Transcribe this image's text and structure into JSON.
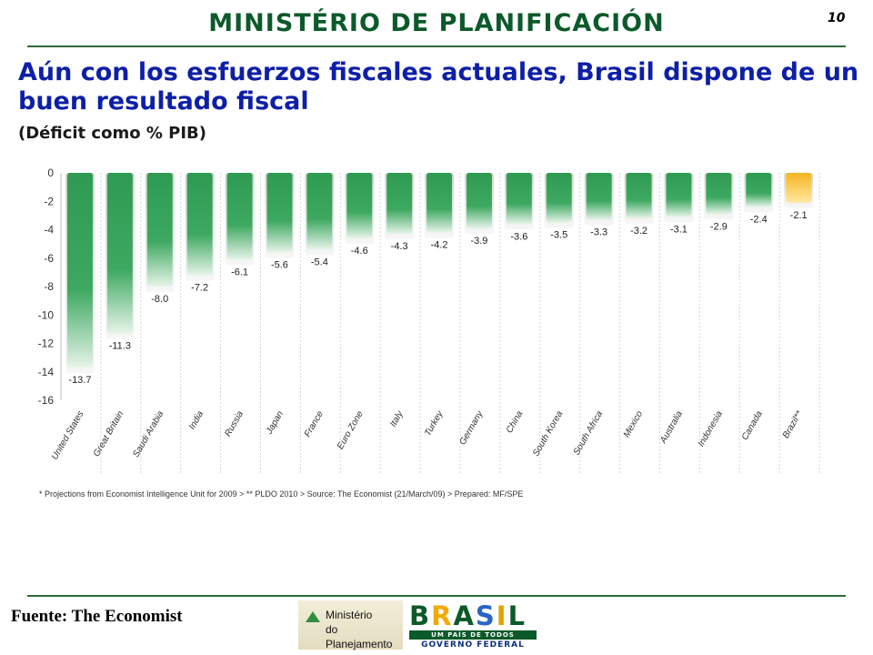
{
  "header": {
    "title": "MINISTÉRIO DE PLANIFICACIÓN",
    "page_number": "10"
  },
  "headline": "Aún con los esfuerzos fiscales actuales, Brasil dispone de un buen resultado fiscal",
  "subtitle": "(Déficit como % PIB)",
  "chart_data": {
    "type": "bar",
    "categories": [
      "United States",
      "Great Britain",
      "Saudi Arabia",
      "India",
      "Russia",
      "Japan",
      "France",
      "Euro Zone",
      "Italy",
      "Turkey",
      "Germany",
      "China",
      "South Korea",
      "South Africa",
      "Mexico",
      "Australia",
      "Indonesia",
      "Canada",
      "Brazil**"
    ],
    "values": [
      -13.7,
      -11.3,
      -8.0,
      -7.2,
      -6.1,
      -5.6,
      -5.4,
      -4.6,
      -4.3,
      -4.2,
      -3.9,
      -3.6,
      -3.5,
      -3.3,
      -3.2,
      -3.1,
      -2.9,
      -2.4,
      -2.1
    ],
    "value_labels": [
      "-13.7",
      "-11.3",
      "-8.0",
      "-7.2",
      "-6.1",
      "-5.6",
      "-5.4",
      "-4.6",
      "-4.3",
      "-4.2",
      "-3.9",
      "-3.6",
      "-3.5",
      "-3.3",
      "-3.2",
      "-3.1",
      "-2.9",
      "-2.4",
      "-2.1"
    ],
    "y_ticks": [
      0,
      -2,
      -4,
      -6,
      -8,
      -10,
      -12,
      -14,
      -16
    ],
    "ylim": [
      -16,
      0
    ],
    "grid": false,
    "bar_color": "#2e9a52",
    "highlight_color": "#f5b51e",
    "highlight_index": 18
  },
  "footnote": "* Projections from Economist Intelligence Unit for 2009 > ** PLDO 2010 > Source: The Economist (21/March/09) > Prepared: MF/SPE",
  "source": "Fuente: The Economist",
  "logos": {
    "ministerio_line1": "Ministério",
    "ministerio_line2": "do Planejamento",
    "brasil_word": "BRASIL",
    "brasil_tagline": "UM PAÍS DE TODOS",
    "brasil_gov": "GOVERNO FEDERAL"
  },
  "colors": {
    "title_green": "#0b5a2a",
    "headline_blue": "#0d1fa8",
    "rule_green": "#2c6b3a"
  }
}
